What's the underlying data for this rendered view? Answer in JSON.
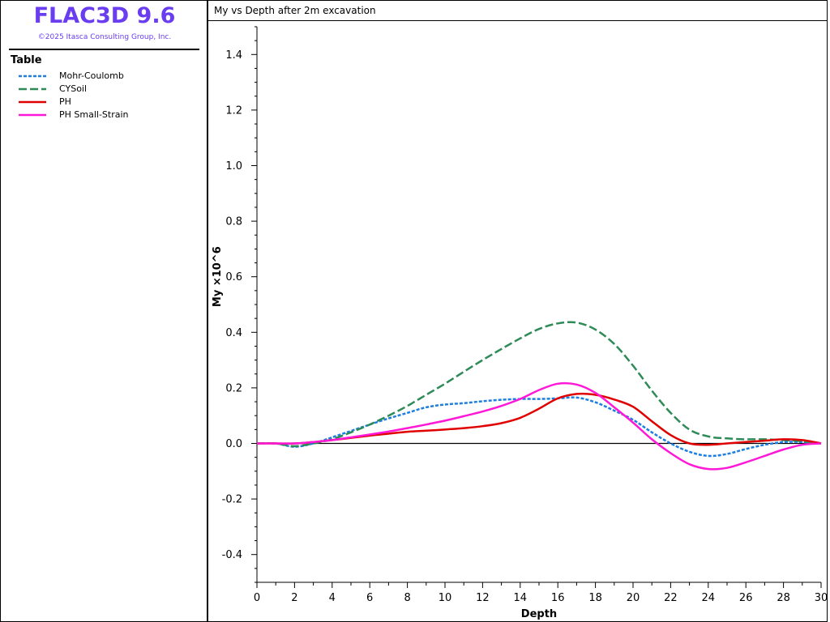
{
  "app": {
    "title": "FLAC3D 9.6",
    "copyright": "©2025 Itasca Consulting Group, Inc."
  },
  "legend": {
    "heading": "Table",
    "items": [
      {
        "label": "Mohr-Coulomb",
        "color": "#1e7fe0",
        "style": "dotted"
      },
      {
        "label": "CYSoil",
        "color": "#2e8b57",
        "style": "dashed"
      },
      {
        "label": "PH",
        "color": "#e00000",
        "style": "solid"
      },
      {
        "label": "PH Small-Strain",
        "color": "#ff18d8",
        "style": "solid"
      }
    ]
  },
  "chart_data": {
    "type": "line",
    "title": "My vs Depth after 2m excavation",
    "xlabel": "Depth",
    "ylabel": "My ×10^6",
    "xlim": [
      0,
      30
    ],
    "ylim": [
      -0.5,
      1.5
    ],
    "xticks": [
      "0",
      "2",
      "4",
      "6",
      "8",
      "10",
      "12",
      "14",
      "16",
      "18",
      "20",
      "22",
      "24",
      "26",
      "28",
      "30"
    ],
    "yticks": [
      "1.4",
      "1.2",
      "1.0",
      "0.8",
      "0.6",
      "0.4",
      "0.2",
      "0.0",
      "-0.2",
      "-0.4"
    ],
    "ytick_values": [
      1.4,
      1.2,
      1.0,
      0.8,
      0.6,
      0.4,
      0.2,
      0.0,
      -0.2,
      -0.4
    ],
    "grid": false,
    "series": [
      {
        "name": "Mohr-Coulomb",
        "color": "#1e7fe0",
        "style": "dotted",
        "x": [
          0,
          1,
          2,
          3,
          4,
          5,
          6,
          7,
          8,
          9,
          10,
          11,
          12,
          13,
          14,
          15,
          16,
          17,
          18,
          19,
          20,
          21,
          22,
          23,
          24,
          25,
          26,
          27,
          28,
          29,
          30
        ],
        "y": [
          0,
          0,
          -0.012,
          0,
          0.022,
          0.045,
          0.068,
          0.09,
          0.11,
          0.13,
          0.14,
          0.145,
          0.152,
          0.157,
          0.16,
          0.16,
          0.162,
          0.165,
          0.148,
          0.118,
          0.085,
          0.04,
          0,
          -0.03,
          -0.045,
          -0.038,
          -0.02,
          -0.005,
          0.005,
          0.005,
          0
        ]
      },
      {
        "name": "CYSoil",
        "color": "#2e8b57",
        "style": "dashed",
        "x": [
          0,
          1,
          2,
          3,
          4,
          5,
          6,
          7,
          8,
          9,
          10,
          11,
          12,
          13,
          14,
          15,
          16,
          17,
          18,
          19,
          20,
          21,
          22,
          23,
          24,
          25,
          26,
          27,
          28,
          29,
          30
        ],
        "y": [
          0,
          0,
          -0.01,
          0,
          0.015,
          0.04,
          0.068,
          0.1,
          0.135,
          0.175,
          0.215,
          0.258,
          0.3,
          0.34,
          0.378,
          0.412,
          0.432,
          0.435,
          0.41,
          0.358,
          0.28,
          0.19,
          0.11,
          0.05,
          0.025,
          0.018,
          0.015,
          0.015,
          0.012,
          0.008,
          0
        ]
      },
      {
        "name": "PH",
        "color": "#e00000",
        "style": "solid",
        "x": [
          0,
          1,
          2,
          3,
          4,
          5,
          6,
          7,
          8,
          9,
          10,
          11,
          12,
          13,
          14,
          15,
          16,
          17,
          18,
          19,
          20,
          21,
          22,
          23,
          24,
          25,
          26,
          27,
          28,
          29,
          30
        ],
        "y": [
          0,
          0,
          0,
          0.005,
          0.012,
          0.02,
          0.028,
          0.035,
          0.042,
          0.046,
          0.05,
          0.055,
          0.062,
          0.073,
          0.092,
          0.125,
          0.162,
          0.178,
          0.175,
          0.158,
          0.132,
          0.08,
          0.03,
          0,
          -0.005,
          0,
          0.005,
          0.01,
          0.015,
          0.012,
          0
        ]
      },
      {
        "name": "PH Small-Strain",
        "color": "#ff18d8",
        "style": "solid",
        "x": [
          0,
          1,
          2,
          3,
          4,
          5,
          6,
          7,
          8,
          9,
          10,
          11,
          12,
          13,
          14,
          15,
          16,
          17,
          18,
          19,
          20,
          21,
          22,
          23,
          24,
          25,
          26,
          27,
          28,
          29,
          30
        ],
        "y": [
          0,
          0,
          0,
          0.005,
          0.012,
          0.022,
          0.032,
          0.043,
          0.055,
          0.068,
          0.082,
          0.098,
          0.115,
          0.135,
          0.16,
          0.192,
          0.215,
          0.212,
          0.182,
          0.13,
          0.075,
          0.015,
          -0.035,
          -0.075,
          -0.092,
          -0.088,
          -0.068,
          -0.045,
          -0.022,
          -0.005,
          0
        ]
      }
    ]
  }
}
